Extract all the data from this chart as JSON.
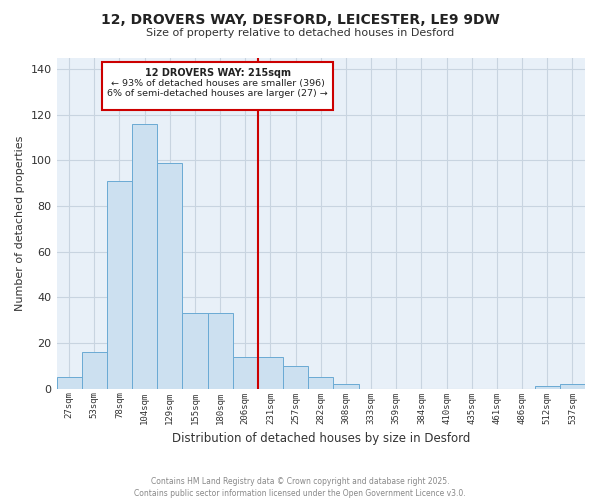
{
  "title": "12, DROVERS WAY, DESFORD, LEICESTER, LE9 9DW",
  "subtitle": "Size of property relative to detached houses in Desford",
  "xlabel": "Distribution of detached houses by size in Desford",
  "ylabel": "Number of detached properties",
  "bar_color": "#cce0f0",
  "bar_edge_color": "#6aaad4",
  "bg_color": "#e8f0f8",
  "categories": [
    "27sqm",
    "53sqm",
    "78sqm",
    "104sqm",
    "129sqm",
    "155sqm",
    "180sqm",
    "206sqm",
    "231sqm",
    "257sqm",
    "282sqm",
    "308sqm",
    "333sqm",
    "359sqm",
    "384sqm",
    "410sqm",
    "435sqm",
    "461sqm",
    "486sqm",
    "512sqm",
    "537sqm"
  ],
  "values": [
    5,
    16,
    91,
    116,
    99,
    33,
    33,
    14,
    14,
    10,
    5,
    2,
    0,
    0,
    0,
    0,
    0,
    0,
    0,
    1,
    2
  ],
  "vline_x": 7.5,
  "vline_color": "#cc0000",
  "vline_label": "12 DROVERS WAY: 215sqm",
  "annotation_line1": "← 93% of detached houses are smaller (396)",
  "annotation_line2": "6% of semi-detached houses are larger (27) →",
  "ylim": [
    0,
    145
  ],
  "yticks": [
    0,
    20,
    40,
    60,
    80,
    100,
    120,
    140
  ],
  "footer1": "Contains HM Land Registry data © Crown copyright and database right 2025.",
  "footer2": "Contains public sector information licensed under the Open Government Licence v3.0.",
  "background_color": "#ffffff",
  "grid_color": "#c8d4e0"
}
